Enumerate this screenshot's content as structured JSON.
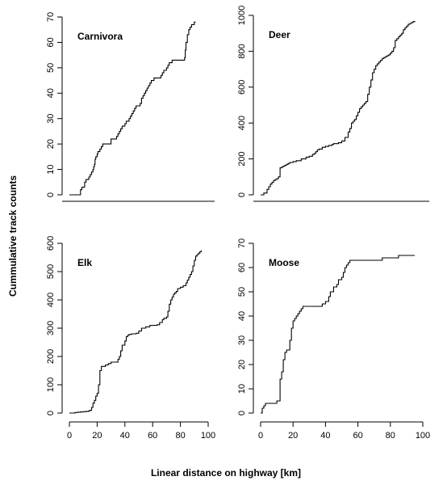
{
  "figure": {
    "ylabel": "Cummulative track counts",
    "xlabel": "Linear distance on highway [km]"
  },
  "chart_data": [
    {
      "type": "line",
      "title": "Carnivora",
      "ylim": [
        0,
        70
      ],
      "yticks": [
        0,
        10,
        20,
        30,
        40,
        50,
        60,
        70
      ],
      "xlim": [
        0,
        100
      ],
      "xticks": [],
      "x_axis": "baseline-only",
      "series": [
        {
          "step": true,
          "x": [
            0,
            8,
            9,
            10,
            11,
            11.5,
            12,
            13,
            14,
            15,
            16,
            17,
            17.5,
            18,
            18.5,
            19,
            20,
            20.5,
            21,
            22,
            22.5,
            23,
            24,
            25,
            26,
            27,
            30,
            31,
            33,
            34,
            35,
            36,
            37,
            38,
            39,
            40,
            40.5,
            41,
            42,
            43,
            44,
            45,
            46,
            47,
            48,
            49,
            50,
            51,
            52,
            53,
            54,
            55,
            56,
            57,
            58,
            59,
            60,
            61,
            62,
            63,
            65,
            66,
            67,
            68,
            70,
            71,
            72,
            73,
            74,
            75,
            76,
            77,
            78,
            80,
            82,
            83,
            83.5,
            84,
            85,
            86,
            87,
            88,
            90,
            91
          ],
          "y": [
            0,
            2,
            3,
            3,
            5,
            5,
            6,
            6,
            7,
            8,
            9,
            10,
            11,
            12,
            14,
            15,
            16,
            17,
            17,
            18,
            18,
            19,
            20,
            20,
            20,
            20,
            22,
            22,
            22,
            23,
            24,
            25,
            26,
            27,
            27,
            28,
            28,
            29,
            29,
            30,
            31,
            32,
            33,
            34,
            35,
            35,
            35,
            36,
            38,
            39,
            40,
            41,
            42,
            43,
            44,
            45,
            45,
            46,
            46,
            46,
            46,
            47,
            48,
            49,
            50,
            51,
            52,
            52,
            53,
            53,
            53,
            53,
            53,
            53,
            53,
            54,
            57,
            60,
            63,
            65,
            66,
            67,
            68,
            68
          ]
        }
      ]
    },
    {
      "type": "line",
      "title": "Deer",
      "ylim": [
        0,
        1000
      ],
      "yticks": [
        0,
        200,
        400,
        600,
        800,
        1000
      ],
      "xlim": [
        0,
        100
      ],
      "xticks": [],
      "x_axis": "baseline-only",
      "series": [
        {
          "step": true,
          "x": [
            0,
            2,
            4,
            5,
            6,
            7,
            8,
            9,
            10,
            11,
            12,
            13,
            14,
            15,
            16,
            17,
            18,
            20,
            22,
            25,
            28,
            30,
            32,
            33,
            34,
            35,
            36,
            38,
            40,
            42,
            44,
            45,
            46,
            48,
            50,
            52,
            54,
            55,
            56,
            57,
            58,
            59,
            60,
            61,
            62,
            63,
            64,
            65,
            66,
            67,
            68,
            69,
            70,
            71,
            72,
            73,
            74,
            75,
            76,
            77,
            78,
            79,
            80,
            81,
            82,
            83,
            84,
            85,
            86,
            87,
            88,
            89,
            90,
            91,
            92,
            93,
            94,
            95
          ],
          "y": [
            0,
            10,
            30,
            45,
            60,
            70,
            80,
            85,
            90,
            100,
            150,
            155,
            160,
            165,
            170,
            175,
            180,
            185,
            190,
            200,
            210,
            215,
            225,
            230,
            240,
            250,
            255,
            265,
            270,
            275,
            280,
            285,
            285,
            290,
            300,
            320,
            350,
            370,
            400,
            410,
            420,
            440,
            460,
            480,
            490,
            500,
            510,
            520,
            560,
            600,
            640,
            680,
            700,
            720,
            730,
            740,
            750,
            760,
            765,
            770,
            775,
            780,
            790,
            800,
            820,
            860,
            870,
            880,
            890,
            900,
            920,
            930,
            940,
            950,
            955,
            960,
            965,
            970
          ]
        }
      ]
    },
    {
      "type": "line",
      "title": "Elk",
      "ylim": [
        0,
        600
      ],
      "yticks": [
        0,
        100,
        200,
        300,
        400,
        500,
        600
      ],
      "xlim": [
        0,
        100
      ],
      "xticks": [
        0,
        20,
        40,
        60,
        80,
        100
      ],
      "series": [
        {
          "step": true,
          "x": [
            0,
            2,
            4,
            6,
            8,
            10,
            12,
            14,
            15,
            16,
            17,
            18,
            19,
            20,
            21,
            22,
            23,
            24,
            25,
            26,
            28,
            30,
            32,
            35,
            36,
            37,
            38,
            40,
            41,
            42,
            43,
            44,
            45,
            48,
            50,
            52,
            55,
            58,
            60,
            63,
            65,
            67,
            68,
            70,
            71,
            72,
            73,
            74,
            75,
            76,
            77,
            78,
            80,
            82,
            84,
            85,
            86,
            87,
            88,
            89,
            90,
            91,
            92,
            93,
            94,
            95
          ],
          "y": [
            0,
            0,
            2,
            3,
            4,
            5,
            6,
            8,
            10,
            20,
            35,
            45,
            60,
            70,
            100,
            150,
            165,
            165,
            165,
            170,
            175,
            180,
            180,
            190,
            200,
            220,
            240,
            255,
            270,
            275,
            278,
            278,
            280,
            282,
            290,
            300,
            305,
            310,
            310,
            312,
            320,
            330,
            335,
            340,
            360,
            385,
            400,
            410,
            420,
            425,
            430,
            440,
            445,
            450,
            460,
            470,
            480,
            490,
            500,
            520,
            540,
            555,
            560,
            565,
            570,
            575
          ]
        }
      ]
    },
    {
      "type": "line",
      "title": "Moose",
      "ylim": [
        0,
        70
      ],
      "yticks": [
        0,
        10,
        20,
        30,
        40,
        50,
        60,
        70
      ],
      "xlim": [
        0,
        100
      ],
      "xticks": [
        0,
        20,
        40,
        60,
        80,
        100
      ],
      "series": [
        {
          "step": true,
          "x": [
            0,
            1,
            2,
            3,
            5,
            10,
            12,
            13,
            14,
            15,
            16,
            17,
            18,
            19,
            20,
            21,
            22,
            23,
            24,
            25,
            26,
            27,
            28,
            30,
            32,
            35,
            38,
            40,
            42,
            43,
            45,
            47,
            48,
            50,
            51,
            52,
            53,
            54,
            55,
            58,
            60,
            62,
            65,
            68,
            70,
            75,
            80,
            82,
            85,
            90,
            95
          ],
          "y": [
            0,
            2,
            3,
            4,
            4,
            5,
            14,
            17,
            22,
            25,
            26,
            26,
            30,
            35,
            38,
            39,
            40,
            41,
            42,
            43,
            44,
            44,
            44,
            44,
            44,
            44,
            45,
            46,
            48,
            50,
            52,
            53,
            55,
            56,
            58,
            60,
            61,
            62,
            63,
            63,
            63,
            63,
            63,
            63,
            63,
            64,
            64,
            64,
            65,
            65,
            65
          ]
        }
      ]
    }
  ]
}
